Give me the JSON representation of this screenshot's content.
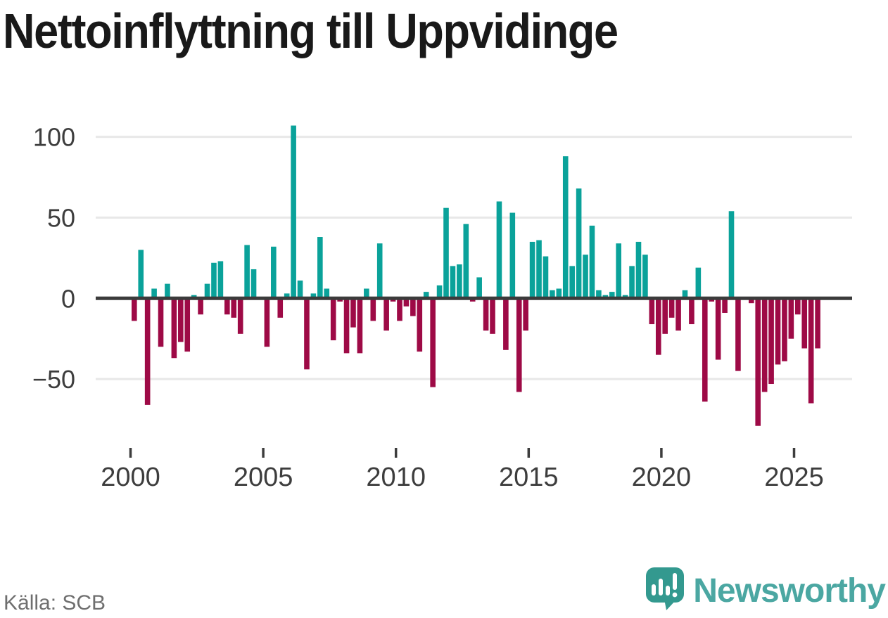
{
  "title": "Nettoinflyttning till Uppvidinge",
  "footer": {
    "source_label": "Källa: SCB",
    "brand_name": "Newsworthy"
  },
  "colors": {
    "positive_bar": "#0aa29a",
    "negative_bar": "#9e0a46",
    "zero_line": "#3b3b3b",
    "gridline": "#e8e8e8",
    "axis_text": "#3d3d3d",
    "title_text": "#191919",
    "source_text": "#6f6f6f",
    "logo_badge": "#33998f",
    "logo_wordmark": "#4BA7A2"
  },
  "chart_data": {
    "type": "bar",
    "title": "Nettoinflyttning till Uppvidinge",
    "x_period": "quarterly",
    "x_start": "2000-Q1",
    "x_end": "2025-Q4",
    "x_tick_labels": [
      "2000",
      "2005",
      "2010",
      "2015",
      "2020",
      "2025"
    ],
    "y_ticks": [
      100,
      50,
      0,
      -50
    ],
    "ylim": [
      -85,
      112
    ],
    "grid": "horizontal-light",
    "legend": "none",
    "values": [
      -14,
      30,
      -66,
      6,
      -30,
      9,
      -37,
      -27,
      -33,
      2,
      -10,
      9,
      22,
      23,
      -10,
      -12,
      -22,
      33,
      18,
      0,
      -30,
      32,
      -12,
      3,
      107,
      11,
      -44,
      3,
      38,
      6,
      -26,
      -2,
      -34,
      -18,
      -34,
      6,
      -14,
      34,
      -20,
      -2,
      -14,
      -5,
      -11,
      -33,
      4,
      -55,
      8,
      56,
      20,
      21,
      46,
      -2,
      13,
      -20,
      -22,
      60,
      -32,
      53,
      -58,
      -20,
      35,
      36,
      26,
      5,
      6,
      88,
      20,
      68,
      27,
      45,
      5,
      2,
      4,
      34,
      2,
      20,
      35,
      27,
      -16,
      -35,
      -22,
      -12,
      -20,
      5,
      -16,
      19,
      -64,
      -2,
      -38,
      -9,
      54,
      -45,
      0,
      -3,
      -79,
      -58,
      -53,
      -41,
      -39,
      -25,
      -10,
      -31,
      -65,
      -31
    ]
  }
}
